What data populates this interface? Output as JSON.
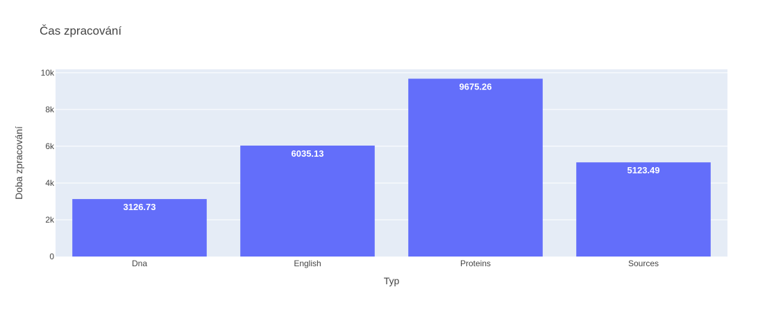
{
  "chart_data": {
    "type": "bar",
    "title": "Čas zpracování",
    "xlabel": "Typ",
    "ylabel": "Doba zpracování",
    "categories": [
      "Dna",
      "English",
      "Proteins",
      "Sources"
    ],
    "values": [
      3126.73,
      6035.13,
      9675.26,
      5123.49
    ],
    "data_labels": [
      "3126.73",
      "6035.13",
      "9675.26",
      "5123.49"
    ],
    "ylim": [
      0,
      10184
    ],
    "yticks": [
      0,
      2000,
      4000,
      6000,
      8000,
      10000
    ],
    "ytick_labels": [
      "0",
      "2k",
      "4k",
      "6k",
      "8k",
      "10k"
    ],
    "grid": true,
    "colors": {
      "bar": "#636efa",
      "plot_bg": "#e5ecf6",
      "grid": "#ffffff",
      "text": "#444444"
    }
  }
}
